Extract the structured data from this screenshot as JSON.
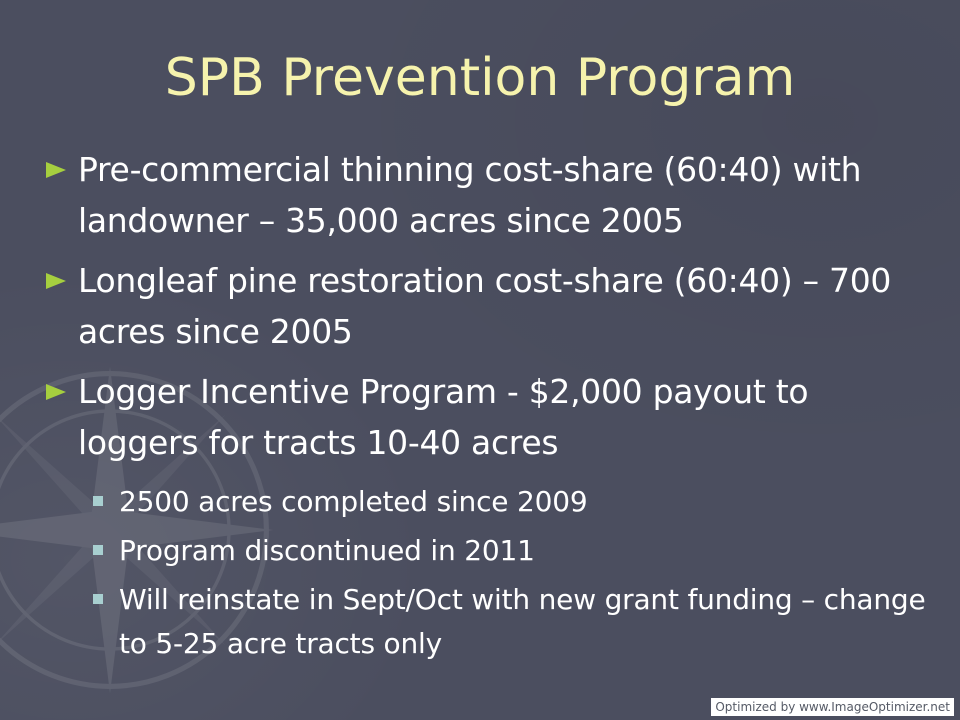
{
  "slide": {
    "title": "SPB Prevention Program",
    "bullets": [
      {
        "text": "Pre-commercial thinning cost-share (60:40) with landowner – 35,000 acres since 2005"
      },
      {
        "text": "Longleaf pine restoration cost-share (60:40) – 700 acres since 2005"
      },
      {
        "text": "Logger Incentive Program - $2,000 payout to loggers for tracts 10-40 acres",
        "sub_bullets": [
          "2500 acres completed since 2009",
          "Program discontinued in 2011",
          "Will reinstate in Sept/Oct with new grant funding – change to 5-25 acre tracts only"
        ]
      }
    ]
  },
  "watermark": {
    "text": "Optimized by www.ImageOptimizer.net"
  },
  "colors": {
    "background": "#4b4e5f",
    "title": "#f6f3ad",
    "bullet_marker": "#a6cf3f",
    "sub_bullet_marker": "#a8cfd0",
    "body_text": "#ffffff"
  },
  "icons": {
    "bullet": "triangle-bullet-icon",
    "sub_bullet": "square-bullet-icon",
    "background": "compass-rose-icon"
  }
}
